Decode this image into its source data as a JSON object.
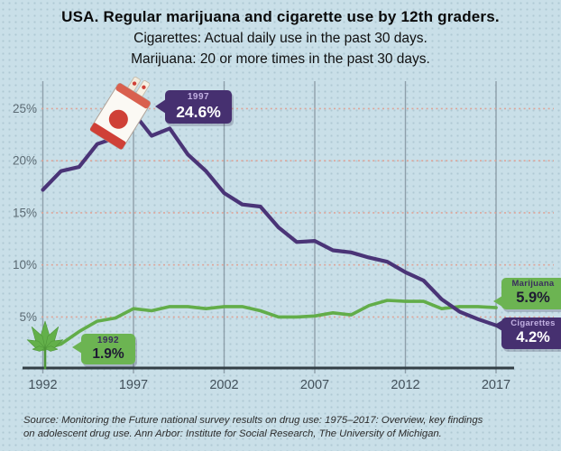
{
  "header": {
    "title": "USA. Regular marijuana and cigarette use by 12th graders.",
    "subtitle_cigarettes": "Cigarettes: Actual daily use in the past 30 days.",
    "subtitle_marijuana": "Marijuana: 20 or more times in the past 30 days."
  },
  "callouts": {
    "peak_cigarettes": {
      "year": "1997",
      "value": "24.6%"
    },
    "start_marijuana": {
      "year": "1992",
      "value": "1.9%"
    },
    "end_marijuana": {
      "label": "Marijuana",
      "value": "5.9%"
    },
    "end_cigarettes": {
      "label": "Cigarettes",
      "value": "4.2%"
    }
  },
  "source": {
    "line1": "Source: Monitoring the Future national survey results on drug use: 1975–2017: Overview, key findings",
    "line2": "on adolescent drug use. Ann Arbor: Institute for Social Research, The University of Michigan."
  },
  "icons": {
    "cigarette_pack": "cigarette-pack-icon",
    "marijuana_leaf": "marijuana-leaf-icon"
  },
  "colors": {
    "background": "#c9dfe8",
    "cigarettes_line": "#4a3477",
    "marijuana_line": "#62ad49",
    "callout_purple": "#463070",
    "callout_green": "#6cb452",
    "grid_vertical": "#8495a0",
    "grid_dotted": "#dfa295",
    "axis": "#323e45",
    "ytick_text": "#5c6b74",
    "xtick_text": "#42505a"
  },
  "chart_data": {
    "type": "line",
    "title": "Regular marijuana and cigarette use by 12th graders, USA, 1992-2017",
    "x": [
      1992,
      1993,
      1994,
      1995,
      1996,
      1997,
      1998,
      1999,
      2000,
      2001,
      2002,
      2003,
      2004,
      2005,
      2006,
      2007,
      2008,
      2009,
      2010,
      2011,
      2012,
      2013,
      2014,
      2015,
      2016,
      2017
    ],
    "series": [
      {
        "name": "Marijuana",
        "color": "#62ad49",
        "values": [
          1.9,
          2.4,
          3.6,
          4.6,
          4.9,
          5.8,
          5.6,
          6.0,
          6.0,
          5.8,
          6.0,
          6.0,
          5.6,
          5.0,
          5.0,
          5.1,
          5.4,
          5.2,
          6.1,
          6.6,
          6.5,
          6.5,
          5.8,
          6.0,
          6.0,
          5.9
        ]
      },
      {
        "name": "Cigarettes",
        "color": "#4a3477",
        "values": [
          17.2,
          19.0,
          19.4,
          21.6,
          22.2,
          24.6,
          22.4,
          23.1,
          20.6,
          19.0,
          16.9,
          15.8,
          15.6,
          13.6,
          12.2,
          12.3,
          11.4,
          11.2,
          10.7,
          10.3,
          9.3,
          8.5,
          6.7,
          5.5,
          4.8,
          4.2
        ]
      }
    ],
    "xticks": [
      1992,
      1997,
      2002,
      2007,
      2012,
      2017
    ],
    "xtick_labels": [
      "1992",
      "1997",
      "2002",
      "2007",
      "2012",
      "2017"
    ],
    "yticks": [
      5,
      10,
      15,
      20,
      25
    ],
    "ytick_labels": [
      "5%",
      "10%",
      "15%",
      "20%",
      "25%"
    ],
    "ylim": [
      0,
      27.5
    ],
    "xlabel": "",
    "ylabel": "",
    "grid": {
      "horizontal": "dotted",
      "vertical": "solid"
    },
    "legend": "end-of-line callouts",
    "annotations": [
      {
        "series": "Cigarettes",
        "x": 1997,
        "text": "1997 24.6%"
      },
      {
        "series": "Marijuana",
        "x": 1992,
        "text": "1992 1.9%"
      },
      {
        "series": "Marijuana",
        "x": 2017,
        "text": "Marijuana 5.9%"
      },
      {
        "series": "Cigarettes",
        "x": 2017,
        "text": "Cigarettes 4.2%"
      }
    ]
  }
}
